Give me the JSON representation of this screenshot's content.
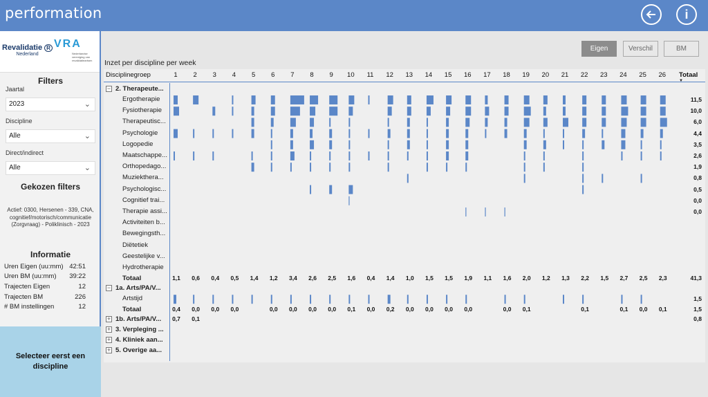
{
  "app": {
    "brand": "performation"
  },
  "topbar": {
    "back_icon": "arrow-left-circle-icon",
    "info_icon": "info-circle-icon",
    "info_label": "i"
  },
  "logos": {
    "revalidatie_main": "Revalidatie",
    "revalidatie_sub": "Nederland",
    "vra_main": "VRA",
    "vra_sub": "Nederlandse vereniging van revalidatieartsen"
  },
  "filters": {
    "title": "Filters",
    "jaartal_label": "Jaartal",
    "jaartal_value": "2023",
    "discipline_label": "Discipline",
    "discipline_value": "Alle",
    "direct_label": "Direct/indirect",
    "direct_value": "Alle",
    "gekozen_title": "Gekozen filters",
    "gekozen_text": "Actief: 0300, Hersenen - 339, CNA, cognitief/motorisch/communicatie (Zorgvraag) - Poliklinisch - 2023"
  },
  "informatie": {
    "title": "Informatie",
    "rows": [
      {
        "label": "Uren Eigen (uu:mm)",
        "value": "42:51"
      },
      {
        "label": "Uren BM (uu:mm)",
        "value": "39:22"
      },
      {
        "label": "Trajecten Eigen",
        "value": "12"
      },
      {
        "label": "Trajecten BM",
        "value": "226"
      },
      {
        "label": "# BM instellingen",
        "value": "12"
      }
    ]
  },
  "selecteer": "Selecteer eerst een discipline",
  "main": {
    "title": "Inzet per discipline per week",
    "buttons": {
      "eigen": "Eigen",
      "verschil": "Verschil",
      "bm": "BM"
    },
    "col_disciplinegroep": "Disciplinegroep",
    "col_totaal": "Totaal",
    "sort_icon": "sort-desc-icon",
    "weeks": [
      "1",
      "2",
      "3",
      "4",
      "5",
      "6",
      "7",
      "8",
      "9",
      "10",
      "11",
      "12",
      "13",
      "14",
      "15",
      "16",
      "17",
      "18",
      "19",
      "20",
      "21",
      "22",
      "23",
      "24",
      "25",
      "26"
    ],
    "bar_color": "#5b87c8",
    "groups": [
      {
        "label": "2. Therapeute...",
        "expanded": true,
        "rows": [
          {
            "label": "Ergotherapie",
            "total": "11,5",
            "bars": [
              0.3,
              0.4,
              0,
              0.1,
              0.3,
              0.3,
              1,
              0.6,
              0.6,
              0.4,
              0.1,
              0.4,
              0.3,
              0.5,
              0.4,
              0.4,
              0.2,
              0.3,
              0.4,
              0.3,
              0.2,
              0.3,
              0.3,
              0.4,
              0.4,
              0.4
            ]
          },
          {
            "label": "Fysiotherapie",
            "total": "10,0",
            "bars": [
              0.4,
              0,
              0.2,
              0.1,
              0.2,
              0.3,
              0.7,
              0.4,
              0.6,
              0.3,
              0,
              0.3,
              0.3,
              0.3,
              0.3,
              0.4,
              0.3,
              0.3,
              0.5,
              0.2,
              0.2,
              0.3,
              0.3,
              0.5,
              0.4,
              0.4
            ]
          },
          {
            "label": "Therapeutisc...",
            "total": "6,0",
            "bars": [
              0,
              0,
              0,
              0,
              0.2,
              0.2,
              0.4,
              0.3,
              0.1,
              0.1,
              0,
              0.1,
              0.2,
              0.1,
              0.2,
              0.3,
              0.2,
              0.2,
              0.4,
              0.3,
              0.4,
              0.3,
              0.3,
              0.4,
              0.4,
              0.5
            ]
          },
          {
            "label": "Psychologie",
            "total": "4,4",
            "bars": [
              0.3,
              0.1,
              0.1,
              0.1,
              0.2,
              0.1,
              0.2,
              0.2,
              0.2,
              0.1,
              0.1,
              0.2,
              0.2,
              0.1,
              0.2,
              0.2,
              0.1,
              0.2,
              0.2,
              0.1,
              0.1,
              0.2,
              0.1,
              0.3,
              0.2,
              0.2
            ]
          },
          {
            "label": "Logopedie",
            "total": "3,5",
            "bars": [
              0,
              0,
              0,
              0,
              0,
              0.1,
              0.2,
              0.3,
              0.2,
              0.1,
              0,
              0.1,
              0.2,
              0.1,
              0.2,
              0.2,
              0,
              0,
              0.2,
              0.2,
              0.1,
              0.1,
              0.2,
              0.3,
              0.1,
              0.1
            ]
          },
          {
            "label": "Maatschappe...",
            "total": "2,6",
            "bars": [
              0.1,
              0.1,
              0.1,
              0,
              0.1,
              0.1,
              0.3,
              0.1,
              0.1,
              0.1,
              0.1,
              0.1,
              0.1,
              0.1,
              0.2,
              0.2,
              0,
              0,
              0.1,
              0.1,
              0,
              0.1,
              0,
              0.1,
              0.1,
              0.1
            ]
          },
          {
            "label": "Orthopedago...",
            "total": "1,9",
            "bars": [
              0,
              0,
              0,
              0,
              0.2,
              0.1,
              0.1,
              0.1,
              0.1,
              0.1,
              0,
              0.1,
              0,
              0.1,
              0.1,
              0.1,
              0,
              0,
              0.1,
              0.1,
              0,
              0.1,
              0,
              0,
              0,
              0
            ]
          },
          {
            "label": "Muziekthera...",
            "total": "0,8",
            "bars": [
              0,
              0,
              0,
              0,
              0,
              0,
              0,
              0,
              0,
              0,
              0,
              0,
              0.1,
              0,
              0,
              0,
              0,
              0,
              0.1,
              0,
              0,
              0.1,
              0.1,
              0,
              0.1,
              0
            ]
          },
          {
            "label": "Psychologisc...",
            "total": "0,5",
            "bars": [
              0,
              0,
              0,
              0,
              0,
              0,
              0,
              0.1,
              0.2,
              0.3,
              0,
              0,
              0,
              0,
              0,
              0,
              0,
              0,
              0,
              0,
              0,
              0.1,
              0,
              0,
              0,
              0
            ]
          },
          {
            "label": "Cognitief trai...",
            "total": "0,0",
            "bars": [
              0,
              0,
              0,
              0,
              0,
              0,
              0,
              0,
              0,
              0.05,
              0,
              0,
              0,
              0,
              0,
              0,
              0,
              0,
              0,
              0,
              0,
              0,
              0,
              0,
              0,
              0
            ]
          },
          {
            "label": "Therapie assi...",
            "total": "0,0",
            "bars": [
              0,
              0,
              0,
              0,
              0,
              0,
              0,
              0,
              0,
              0,
              0,
              0,
              0,
              0,
              0,
              0.05,
              0.05,
              0.05,
              0,
              0,
              0,
              0,
              0,
              0,
              0,
              0
            ]
          },
          {
            "label": "Activiteiten b...",
            "total": "",
            "bars": []
          },
          {
            "label": "Bewegingsth...",
            "total": "",
            "bars": []
          },
          {
            "label": "Diëtetiek",
            "total": "",
            "bars": []
          },
          {
            "label": "Geestelijke v...",
            "total": "",
            "bars": []
          },
          {
            "label": "Hydrotherapie",
            "total": "",
            "bars": []
          }
        ],
        "totaal_label": "Totaal",
        "totaal_values": [
          "1,1",
          "0,6",
          "0,4",
          "0,5",
          "1,4",
          "1,2",
          "3,4",
          "2,6",
          "2,5",
          "1,6",
          "0,4",
          "1,4",
          "1,0",
          "1,5",
          "1,5",
          "1,9",
          "1,1",
          "1,6",
          "2,0",
          "1,2",
          "1,3",
          "2,2",
          "1,5",
          "2,7",
          "2,5",
          "2,3"
        ],
        "totaal_total": "41,3"
      },
      {
        "label": "1a. Arts/PA/V...",
        "expanded": true,
        "rows": [
          {
            "label": "Artstijd",
            "total": "1,5",
            "bars": [
              0.2,
              0.1,
              0.1,
              0.1,
              0.1,
              0.1,
              0.1,
              0.1,
              0.1,
              0.1,
              0.1,
              0.2,
              0.1,
              0.1,
              0.1,
              0.1,
              0,
              0.1,
              0.1,
              0,
              0.1,
              0.1,
              0,
              0.1,
              0.1,
              0
            ]
          }
        ],
        "totaal_label": "Totaal",
        "totaal_values": [
          "0,4",
          "0,0",
          "0,0",
          "0,0",
          "",
          "0,0",
          "0,0",
          "0,0",
          "0,0",
          "0,1",
          "0,0",
          "0,2",
          "0,0",
          "0,0",
          "0,0",
          "0,0",
          "",
          "0,0",
          "0,1",
          "",
          "",
          "0,1",
          "",
          "0,1",
          "0,0",
          "0,1"
        ],
        "totaal_total": "1,5"
      },
      {
        "label": "1b. Arts/PA/V...",
        "expanded": false,
        "values": [
          "0,7",
          "0,1",
          "",
          "",
          "",
          "",
          "",
          "",
          "",
          "",
          "",
          "",
          "",
          "",
          "",
          "",
          "",
          "",
          "",
          "",
          "",
          "",
          "",
          "",
          "",
          ""
        ],
        "total": "0,8"
      },
      {
        "label": "3. Verpleging ...",
        "expanded": false
      },
      {
        "label": "4. Kliniek aan...",
        "expanded": false
      },
      {
        "label": "5. Overige aa...",
        "expanded": false
      }
    ]
  }
}
